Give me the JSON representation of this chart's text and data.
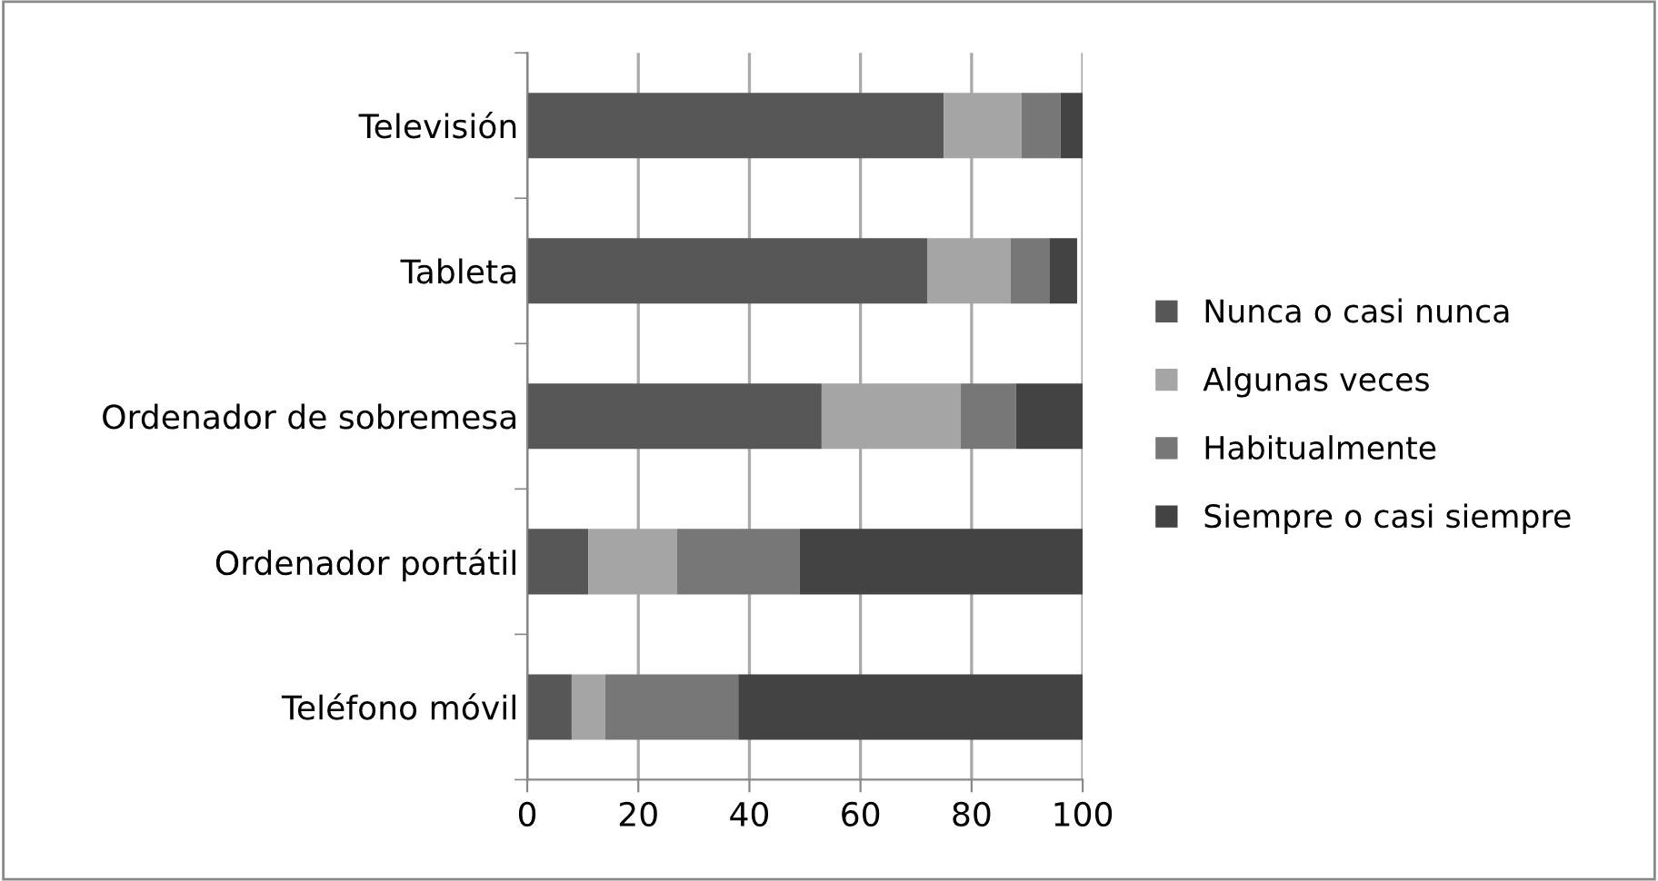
{
  "chart_data": {
    "type": "bar",
    "orientation": "horizontal",
    "stacked": true,
    "categories": [
      "Televisión",
      "Tableta",
      "Ordenador de sobremesa",
      "Ordenador portátil",
      "Teléfono móvil"
    ],
    "series": [
      {
        "name": "Nunca o casi nunca",
        "color": "#575757",
        "values": [
          75,
          72,
          53,
          11,
          8
        ]
      },
      {
        "name": "Algunas veces",
        "color": "#a5a5a5",
        "values": [
          14,
          15,
          25,
          16,
          6
        ]
      },
      {
        "name": "Habitualmente",
        "color": "#777777",
        "values": [
          7,
          7,
          10,
          22,
          24
        ]
      },
      {
        "name": "Siempre o casi siempre",
        "color": "#434343",
        "values": [
          4,
          5,
          12,
          51,
          62
        ]
      }
    ],
    "xlim": [
      0,
      100
    ],
    "xticks": [
      0,
      20,
      40,
      60,
      80,
      100
    ],
    "grid": "x",
    "legend": "right"
  }
}
